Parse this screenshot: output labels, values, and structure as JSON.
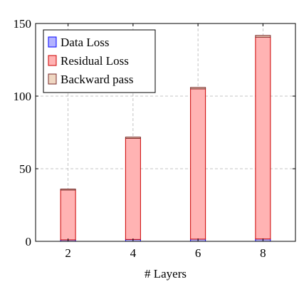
{
  "chart_data": {
    "type": "bar",
    "stacked": true,
    "categories": [
      "2",
      "4",
      "6",
      "8"
    ],
    "x": [
      2,
      4,
      6,
      8
    ],
    "xlim": [
      1,
      9
    ],
    "ylim": [
      0,
      150
    ],
    "xticks": [
      "2",
      "4",
      "6",
      "8"
    ],
    "yticks": [
      "0",
      "50",
      "100",
      "150"
    ],
    "xlabel": "# Layers",
    "ylabel": "",
    "grid": true,
    "legend_position": "top-left",
    "series": [
      {
        "name": "Data Loss",
        "values": [
          1.0,
          1.3,
          1.5,
          1.6
        ],
        "fill": "#b3b3ff",
        "stroke": "#0000ff"
      },
      {
        "name": "Residual Loss",
        "values": [
          34.3,
          69.6,
          103.5,
          139.0
        ],
        "fill": "#ffb3b3",
        "stroke": "#cc0000"
      },
      {
        "name": "Backward pass",
        "values": [
          0.7,
          0.9,
          1.0,
          1.2
        ],
        "fill": "#efd7c2",
        "stroke": "#7a2a2a"
      }
    ]
  }
}
